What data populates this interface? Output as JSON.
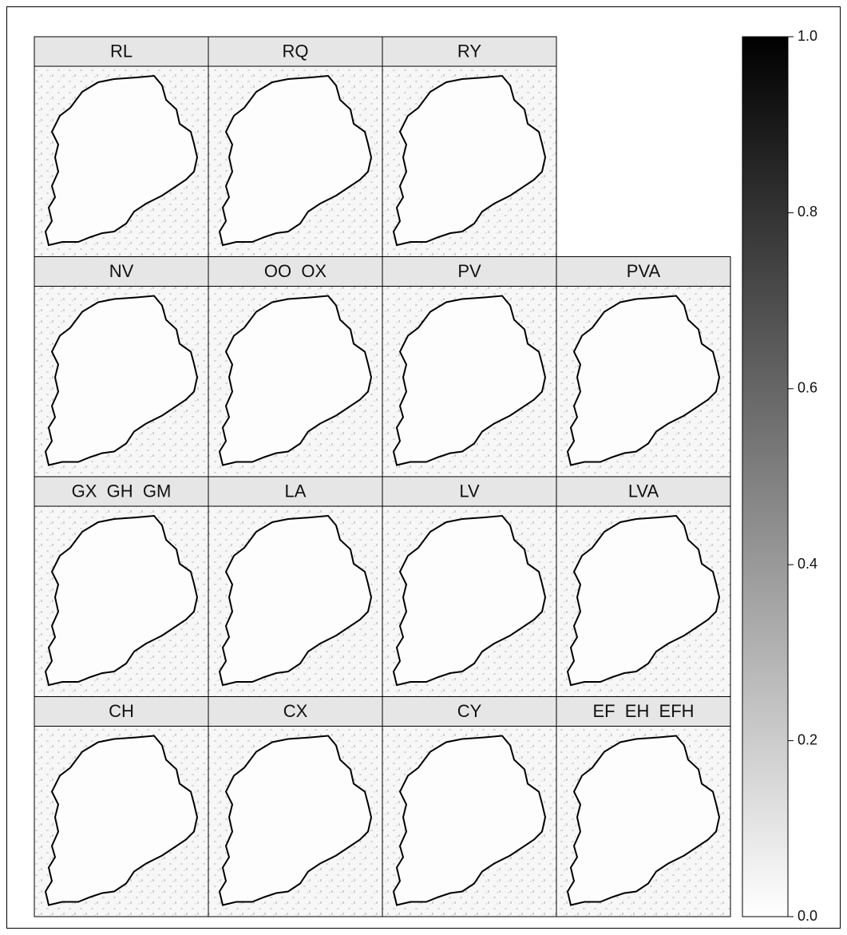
{
  "panel_rows": [
    [
      "RL",
      "RQ",
      "RY"
    ],
    [
      "NV",
      "OO  OX",
      "PV",
      "PVA"
    ],
    [
      "GX  GH  GM",
      "LA",
      "LV",
      "LVA"
    ],
    [
      "CH",
      "CX",
      "CY",
      "EF  EH  EFH"
    ]
  ],
  "colorbar": {
    "lim": [
      0,
      1
    ],
    "ticks": [
      {
        "value": 0,
        "label": "0.0"
      },
      {
        "value": 0.2,
        "label": "0.2"
      },
      {
        "value": 0.4,
        "label": "0.4"
      },
      {
        "value": 0.6,
        "label": "0.6"
      },
      {
        "value": 0.8,
        "label": "0.8"
      },
      {
        "value": 1,
        "label": "1.0"
      }
    ]
  }
}
